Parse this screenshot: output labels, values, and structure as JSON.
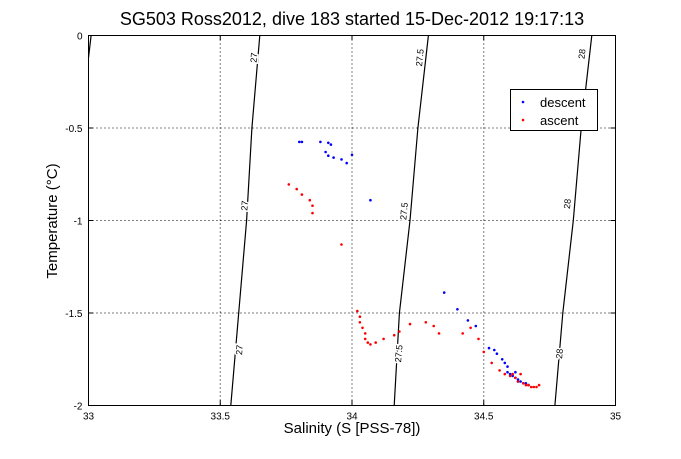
{
  "chart_data": {
    "type": "scatter",
    "title": "SG503 Ross2012, dive 183 started 15-Dec-2012 19:17:13",
    "xlabel": "Salinity (S [PSS-78])",
    "ylabel": "Temperature (°C)",
    "xlim": [
      33,
      35
    ],
    "ylim": [
      -2,
      0
    ],
    "xticks": [
      33,
      33.5,
      34,
      34.5,
      35
    ],
    "xtick_labels": [
      "33",
      "33.5",
      "34",
      "34.5",
      "35"
    ],
    "yticks": [
      0,
      -0.5,
      -1,
      -1.5,
      -2
    ],
    "ytick_labels": [
      "0",
      "-0.5",
      "-1",
      "-1.5",
      "-2"
    ],
    "grid": true,
    "legend": {
      "position": "top-right",
      "entries": [
        "descent",
        "ascent"
      ]
    },
    "contours": [
      {
        "label": "27",
        "points": [
          [
            33.54,
            -2
          ],
          [
            33.57,
            -1.5
          ],
          [
            33.6,
            -1.0
          ],
          [
            33.62,
            -0.5
          ],
          [
            33.65,
            0
          ]
        ],
        "label_positions": [
          [
            33.575,
            -1.7
          ],
          [
            33.595,
            -0.92
          ],
          [
            33.63,
            -0.12
          ]
        ]
      },
      {
        "label": "27.5",
        "points": [
          [
            34.16,
            -2
          ],
          [
            34.18,
            -1.5
          ],
          [
            34.22,
            -1.0
          ],
          [
            34.25,
            -0.5
          ],
          [
            34.29,
            0
          ]
        ],
        "label_positions": [
          [
            34.18,
            -1.72
          ],
          [
            34.2,
            -0.95
          ],
          [
            34.26,
            -0.12
          ]
        ]
      },
      {
        "label": "28",
        "points": [
          [
            34.77,
            -2
          ],
          [
            34.8,
            -1.5
          ],
          [
            34.84,
            -1.0
          ],
          [
            34.87,
            -0.5
          ],
          [
            34.91,
            0
          ]
        ],
        "label_positions": [
          [
            34.79,
            -1.72
          ],
          [
            34.82,
            -0.91
          ],
          [
            34.875,
            -0.1
          ]
        ]
      },
      {
        "label": "",
        "points": [
          [
            33.0,
            -0.12
          ],
          [
            33.01,
            0
          ]
        ],
        "label_positions": []
      }
    ],
    "series": [
      {
        "name": "descent",
        "color": "#0000ff",
        "points": [
          [
            33.8,
            -0.575
          ],
          [
            33.81,
            -0.575
          ],
          [
            33.88,
            -0.575
          ],
          [
            33.91,
            -0.58
          ],
          [
            33.92,
            -0.59
          ],
          [
            33.9,
            -0.63
          ],
          [
            33.91,
            -0.65
          ],
          [
            33.93,
            -0.66
          ],
          [
            33.96,
            -0.67
          ],
          [
            33.98,
            -0.69
          ],
          [
            34.0,
            -0.645
          ],
          [
            34.07,
            -0.89
          ],
          [
            34.35,
            -1.39
          ],
          [
            34.4,
            -1.48
          ],
          [
            34.44,
            -1.54
          ],
          [
            34.47,
            -1.57
          ],
          [
            34.52,
            -1.69
          ],
          [
            34.54,
            -1.7
          ],
          [
            34.55,
            -1.72
          ],
          [
            34.57,
            -1.75
          ],
          [
            34.58,
            -1.77
          ],
          [
            34.59,
            -1.79
          ],
          [
            34.59,
            -1.82
          ],
          [
            34.6,
            -1.83
          ],
          [
            34.61,
            -1.84
          ],
          [
            34.62,
            -1.85
          ],
          [
            34.63,
            -1.86
          ],
          [
            34.63,
            -1.87
          ],
          [
            34.64,
            -1.87
          ],
          [
            34.65,
            -1.88
          ],
          [
            34.66,
            -1.88
          ],
          [
            34.67,
            -1.89
          ],
          [
            34.62,
            -1.82
          ]
        ]
      },
      {
        "name": "ascent",
        "color": "#ff0000",
        "points": [
          [
            33.76,
            -0.805
          ],
          [
            33.79,
            -0.83
          ],
          [
            33.81,
            -0.86
          ],
          [
            33.84,
            -0.89
          ],
          [
            33.85,
            -0.92
          ],
          [
            33.85,
            -0.96
          ],
          [
            33.96,
            -1.13
          ],
          [
            34.02,
            -1.49
          ],
          [
            34.03,
            -1.52
          ],
          [
            34.03,
            -1.55
          ],
          [
            34.04,
            -1.58
          ],
          [
            34.05,
            -1.61
          ],
          [
            34.05,
            -1.64
          ],
          [
            34.06,
            -1.66
          ],
          [
            34.07,
            -1.67
          ],
          [
            34.09,
            -1.66
          ],
          [
            34.12,
            -1.64
          ],
          [
            34.16,
            -1.62
          ],
          [
            34.18,
            -1.6
          ],
          [
            34.22,
            -1.56
          ],
          [
            34.28,
            -1.55
          ],
          [
            34.31,
            -1.57
          ],
          [
            34.33,
            -1.61
          ],
          [
            34.42,
            -1.61
          ],
          [
            34.45,
            -1.58
          ],
          [
            34.48,
            -1.64
          ],
          [
            34.5,
            -1.71
          ],
          [
            34.53,
            -1.77
          ],
          [
            34.56,
            -1.81
          ],
          [
            34.58,
            -1.83
          ],
          [
            34.6,
            -1.84
          ],
          [
            34.62,
            -1.85
          ],
          [
            34.63,
            -1.87
          ],
          [
            34.65,
            -1.88
          ],
          [
            34.66,
            -1.89
          ],
          [
            34.67,
            -1.89
          ],
          [
            34.68,
            -1.9
          ],
          [
            34.69,
            -1.9
          ],
          [
            34.7,
            -1.9
          ],
          [
            34.71,
            -1.89
          ],
          [
            34.64,
            -1.83
          ],
          [
            34.61,
            -1.83
          ]
        ]
      }
    ]
  }
}
